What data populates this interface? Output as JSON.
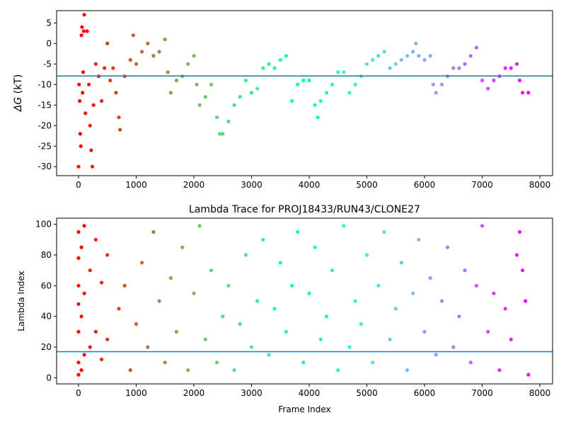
{
  "chart_data": [
    {
      "type": "scatter",
      "title": "",
      "xlabel": "",
      "ylabel": "ΔG (kT)",
      "ylabel_symbol": "ΔG",
      "ylabel_unit": "(kT)",
      "xlim": [
        -380,
        8220
      ],
      "ylim": [
        -32.2,
        8.0
      ],
      "xticks": [
        0,
        1000,
        2000,
        3000,
        4000,
        5000,
        6000,
        7000,
        8000
      ],
      "yticks": [
        5,
        0,
        -5,
        -10,
        -15,
        -20,
        -25,
        -30
      ],
      "hline": -7.9,
      "hline_color": "#1f77b4",
      "colormap": "rainbow (red at frame 0 → violet at frame ~7800)",
      "grid": false,
      "legend": "none",
      "series_description": "ΔG estimate per frame",
      "points": [
        [
          0,
          -30
        ],
        [
          10,
          -10
        ],
        [
          20,
          -14
        ],
        [
          30,
          -22
        ],
        [
          40,
          -25
        ],
        [
          50,
          2
        ],
        [
          60,
          4
        ],
        [
          70,
          -12
        ],
        [
          80,
          -7
        ],
        [
          90,
          3
        ],
        [
          100,
          7
        ],
        [
          120,
          -17
        ],
        [
          150,
          3
        ],
        [
          180,
          -10
        ],
        [
          200,
          -20
        ],
        [
          220,
          -26
        ],
        [
          240,
          -30
        ],
        [
          260,
          -15
        ],
        [
          300,
          -5
        ],
        [
          350,
          -8
        ],
        [
          400,
          -14
        ],
        [
          450,
          -6
        ],
        [
          500,
          0
        ],
        [
          550,
          -9
        ],
        [
          600,
          -6
        ],
        [
          650,
          -12
        ],
        [
          700,
          -18
        ],
        [
          720,
          -21
        ],
        [
          800,
          -8
        ],
        [
          900,
          -4
        ],
        [
          950,
          2
        ],
        [
          1000,
          -5
        ],
        [
          1100,
          -2
        ],
        [
          1200,
          0
        ],
        [
          1300,
          -3
        ],
        [
          1400,
          -2
        ],
        [
          1500,
          1
        ],
        [
          1550,
          -7
        ],
        [
          1600,
          -12
        ],
        [
          1700,
          -9
        ],
        [
          1800,
          -8
        ],
        [
          1900,
          -5
        ],
        [
          2000,
          -3
        ],
        [
          2050,
          -10
        ],
        [
          2100,
          -15
        ],
        [
          2200,
          -13
        ],
        [
          2300,
          -10
        ],
        [
          2400,
          -18
        ],
        [
          2450,
          -22
        ],
        [
          2500,
          -22
        ],
        [
          2600,
          -19
        ],
        [
          2700,
          -15
        ],
        [
          2800,
          -13
        ],
        [
          2900,
          -9
        ],
        [
          3000,
          -12
        ],
        [
          3100,
          -11
        ],
        [
          3200,
          -6
        ],
        [
          3300,
          -5
        ],
        [
          3400,
          -6
        ],
        [
          3500,
          -4
        ],
        [
          3600,
          -3
        ],
        [
          3700,
          -14
        ],
        [
          3800,
          -10
        ],
        [
          3900,
          -9
        ],
        [
          4000,
          -9
        ],
        [
          4100,
          -15
        ],
        [
          4150,
          -18
        ],
        [
          4200,
          -14
        ],
        [
          4300,
          -12
        ],
        [
          4400,
          -10
        ],
        [
          4500,
          -7
        ],
        [
          4600,
          -7
        ],
        [
          4700,
          -12
        ],
        [
          4800,
          -10
        ],
        [
          4900,
          -8
        ],
        [
          5000,
          -5
        ],
        [
          5100,
          -4
        ],
        [
          5200,
          -3
        ],
        [
          5300,
          -2
        ],
        [
          5400,
          -6
        ],
        [
          5500,
          -5
        ],
        [
          5600,
          -4
        ],
        [
          5700,
          -3
        ],
        [
          5800,
          -2
        ],
        [
          5850,
          0
        ],
        [
          5900,
          -3
        ],
        [
          6000,
          -4
        ],
        [
          6100,
          -3
        ],
        [
          6150,
          -10
        ],
        [
          6200,
          -12
        ],
        [
          6300,
          -10
        ],
        [
          6400,
          -8
        ],
        [
          6500,
          -6
        ],
        [
          6600,
          -6
        ],
        [
          6700,
          -5
        ],
        [
          6800,
          -3
        ],
        [
          6900,
          -1
        ],
        [
          7000,
          -9
        ],
        [
          7100,
          -11
        ],
        [
          7200,
          -9
        ],
        [
          7300,
          -8
        ],
        [
          7400,
          -6
        ],
        [
          7500,
          -6
        ],
        [
          7600,
          -5
        ],
        [
          7650,
          -9
        ],
        [
          7700,
          -12
        ],
        [
          7800,
          -12
        ]
      ]
    },
    {
      "type": "scatter",
      "title": "Lambda Trace for PROJ18433/RUN43/CLONE27",
      "xlabel": "Frame Index",
      "ylabel": "Lambda Index",
      "xlim": [
        -380,
        8220
      ],
      "ylim": [
        -4,
        104
      ],
      "xticks": [
        0,
        1000,
        2000,
        3000,
        4000,
        5000,
        6000,
        7000,
        8000
      ],
      "yticks": [
        0,
        20,
        40,
        60,
        80,
        100
      ],
      "hline": 17,
      "hline_color": "#1f77b4",
      "colormap": "rainbow (red at frame 0 → violet at frame ~7800)",
      "grid": false,
      "legend": "none",
      "series_description": "lambda index visited per frame, values 0–99 spread across the full range",
      "points": [
        [
          0,
          2
        ],
        [
          0,
          10
        ],
        [
          0,
          30
        ],
        [
          0,
          48
        ],
        [
          0,
          60
        ],
        [
          0,
          78
        ],
        [
          0,
          95
        ],
        [
          50,
          5
        ],
        [
          50,
          40
        ],
        [
          50,
          85
        ],
        [
          100,
          15
        ],
        [
          100,
          55
        ],
        [
          100,
          99
        ],
        [
          200,
          20
        ],
        [
          200,
          70
        ],
        [
          300,
          30
        ],
        [
          300,
          90
        ],
        [
          400,
          12
        ],
        [
          400,
          62
        ],
        [
          500,
          25
        ],
        [
          500,
          80
        ],
        [
          700,
          45
        ],
        [
          800,
          60
        ],
        [
          900,
          5
        ],
        [
          1000,
          35
        ],
        [
          1100,
          75
        ],
        [
          1200,
          20
        ],
        [
          1300,
          95
        ],
        [
          1400,
          50
        ],
        [
          1500,
          10
        ],
        [
          1600,
          65
        ],
        [
          1700,
          30
        ],
        [
          1800,
          85
        ],
        [
          1900,
          5
        ],
        [
          2000,
          55
        ],
        [
          2100,
          99
        ],
        [
          2200,
          25
        ],
        [
          2300,
          70
        ],
        [
          2400,
          10
        ],
        [
          2500,
          40
        ],
        [
          2600,
          60
        ],
        [
          2700,
          5
        ],
        [
          2800,
          35
        ],
        [
          2900,
          80
        ],
        [
          3000,
          20
        ],
        [
          3100,
          50
        ],
        [
          3200,
          90
        ],
        [
          3300,
          15
        ],
        [
          3400,
          45
        ],
        [
          3500,
          75
        ],
        [
          3600,
          30
        ],
        [
          3700,
          60
        ],
        [
          3800,
          95
        ],
        [
          3900,
          10
        ],
        [
          4000,
          55
        ],
        [
          4100,
          85
        ],
        [
          4200,
          25
        ],
        [
          4300,
          40
        ],
        [
          4400,
          70
        ],
        [
          4500,
          5
        ],
        [
          4600,
          99
        ],
        [
          4700,
          20
        ],
        [
          4800,
          50
        ],
        [
          4900,
          35
        ],
        [
          5000,
          80
        ],
        [
          5100,
          10
        ],
        [
          5200,
          60
        ],
        [
          5300,
          95
        ],
        [
          5400,
          25
        ],
        [
          5500,
          45
        ],
        [
          5600,
          75
        ],
        [
          5700,
          5
        ],
        [
          5800,
          55
        ],
        [
          5900,
          90
        ],
        [
          6000,
          30
        ],
        [
          6100,
          65
        ],
        [
          6200,
          15
        ],
        [
          6300,
          50
        ],
        [
          6400,
          85
        ],
        [
          6500,
          20
        ],
        [
          6600,
          40
        ],
        [
          6700,
          70
        ],
        [
          6800,
          10
        ],
        [
          6900,
          60
        ],
        [
          7000,
          99
        ],
        [
          7100,
          30
        ],
        [
          7200,
          55
        ],
        [
          7300,
          5
        ],
        [
          7400,
          45
        ],
        [
          7500,
          25
        ],
        [
          7600,
          80
        ],
        [
          7650,
          95
        ],
        [
          7700,
          70
        ],
        [
          7750,
          50
        ],
        [
          7800,
          2
        ]
      ]
    }
  ]
}
